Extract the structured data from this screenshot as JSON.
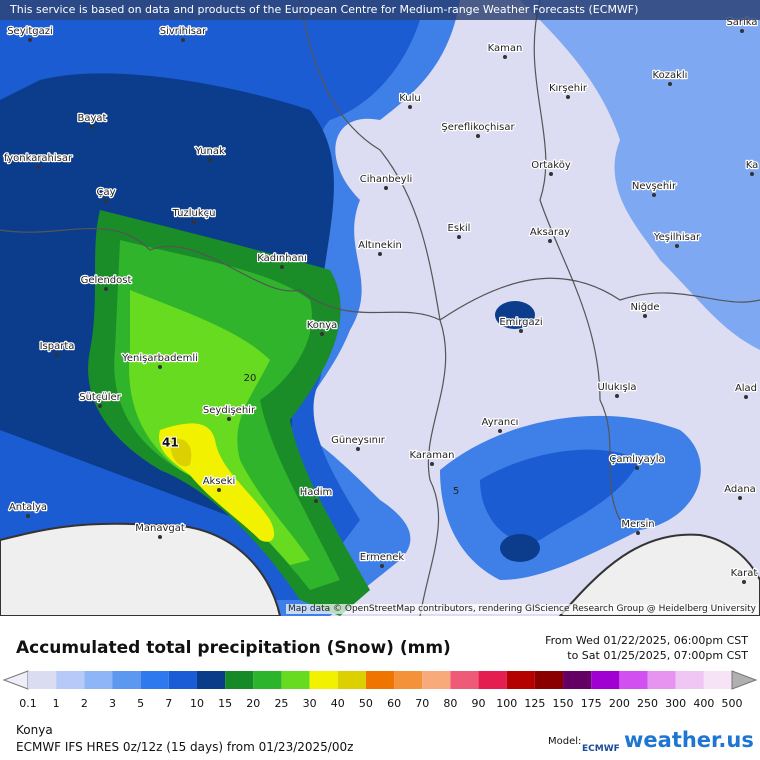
{
  "banner": "This service is based on data and products of the European Centre for Medium-range Weather Forecasts (ECMWF)",
  "map": {
    "cities": [
      "Seyitgazi",
      "Sivrihisar",
      "Kaman",
      "Sarıka",
      "Kozaklı",
      "Kırşehir",
      "Kulu",
      "Bayat",
      "Şereflikoçhisar",
      "Yunak",
      "fyonkarahisar",
      "Ortaköy",
      "Cihanbeyli",
      "Nevşehir",
      "Ka",
      "Çay",
      "Tuzlukçu",
      "Eskil",
      "Aksaray",
      "Yeşilhisar",
      "Altınekin",
      "Kadınhanı",
      "Gelendost",
      "Niğde",
      "Emirgazi",
      "Konya",
      "Isparta",
      "Yenişarbademli",
      "Ulukışla",
      "Alad",
      "Sütçüler",
      "Seydişehir",
      "Ayrancı",
      "Güneysınır",
      "Karaman",
      "Çamlıyayla",
      "Akseki",
      "Hadim",
      "Adana",
      "Antalya",
      "Manavgat",
      "Mersin",
      "Ermenek",
      "Karat"
    ],
    "contour_labels": [
      "20",
      "5"
    ],
    "max_label": "41",
    "attribution": "Map data © OpenStreetMap contributors, rendering GIScience Research Group @ Heidelberg University"
  },
  "legend": {
    "title": "Accumulated total precipitation (Snow) (mm)",
    "from": "From Wed 01/22/2025, 06:00pm CST",
    "to": "to Sat 01/25/2025, 07:00pm CST",
    "labels": [
      "0.1",
      "1",
      "2",
      "3",
      "5",
      "7",
      "10",
      "15",
      "20",
      "25",
      "30",
      "40",
      "50",
      "60",
      "70",
      "80",
      "90",
      "100",
      "125",
      "150",
      "175",
      "200",
      "250",
      "300",
      "400",
      "500"
    ],
    "colors": [
      "#dadcf2",
      "#b6c9f8",
      "#8db5f7",
      "#5c98f0",
      "#2f79ef",
      "#1a5cd6",
      "#0b3c8a",
      "#178a28",
      "#2db42d",
      "#66db1f",
      "#f2f200",
      "#dcd000",
      "#ef7400",
      "#f4923a",
      "#f8aa7a",
      "#ef5a78",
      "#e41e50",
      "#b40000",
      "#8a0000",
      "#640064",
      "#a000d2",
      "#d24ff0",
      "#e694f0",
      "#efc6f4",
      "#f6e4f6"
    ],
    "low_color": "#eeeef8",
    "high_color": "#b0b0b0"
  },
  "footer": {
    "location": "Konya",
    "model_run": "ECMWF IFS HRES 0z/12z (15 days) from  01/23/2025/00z",
    "model_label": "Model:",
    "ecmwf": "ECMWF",
    "brand": "weather.us"
  }
}
